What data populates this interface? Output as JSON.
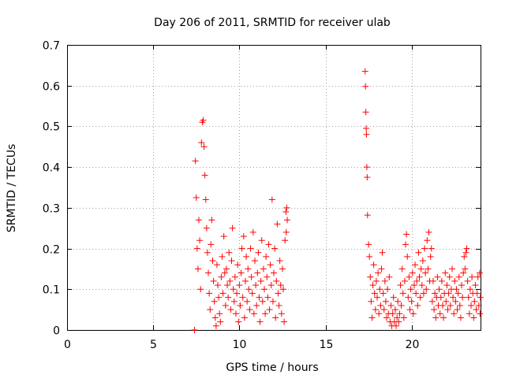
{
  "chart_data": {
    "type": "scatter",
    "title": "Day 206 of 2011, SRMTID for receiver ulab",
    "xlabel": "GPS time / hours",
    "ylabel": "SRMTID / TECUs",
    "xlim": [
      0,
      24
    ],
    "ylim": [
      0,
      0.7
    ],
    "xticks": [
      0,
      5,
      10,
      15,
      20
    ],
    "yticks": [
      0,
      0.1,
      0.2,
      0.3,
      0.4,
      0.5,
      0.6,
      0.7
    ],
    "grid": true,
    "legend": "none",
    "marker": "plus",
    "marker_color": "#ff0000",
    "series": [
      {
        "name": "SRMTID",
        "points": [
          [
            7.4,
            0.0
          ],
          [
            7.45,
            0.415
          ],
          [
            7.5,
            0.325
          ],
          [
            7.55,
            0.2
          ],
          [
            7.6,
            0.15
          ],
          [
            7.65,
            0.27
          ],
          [
            7.7,
            0.22
          ],
          [
            7.75,
            0.1
          ],
          [
            7.8,
            0.46
          ],
          [
            7.85,
            0.51
          ],
          [
            7.9,
            0.515
          ],
          [
            7.95,
            0.45
          ],
          [
            8.0,
            0.38
          ],
          [
            8.05,
            0.32
          ],
          [
            8.1,
            0.25
          ],
          [
            8.15,
            0.19
          ],
          [
            8.2,
            0.14
          ],
          [
            8.25,
            0.09
          ],
          [
            8.3,
            0.05
          ],
          [
            8.35,
            0.21
          ],
          [
            8.4,
            0.27
          ],
          [
            8.45,
            0.17
          ],
          [
            8.5,
            0.12
          ],
          [
            8.55,
            0.07
          ],
          [
            8.6,
            0.03
          ],
          [
            8.65,
            0.01
          ],
          [
            8.7,
            0.16
          ],
          [
            8.75,
            0.11
          ],
          [
            8.8,
            0.08
          ],
          [
            8.85,
            0.04
          ],
          [
            8.9,
            0.02
          ],
          [
            8.95,
            0.13
          ],
          [
            9.0,
            0.18
          ],
          [
            9.05,
            0.09
          ],
          [
            9.1,
            0.23
          ],
          [
            9.15,
            0.14
          ],
          [
            9.2,
            0.06
          ],
          [
            9.25,
            0.15
          ],
          [
            9.3,
            0.11
          ],
          [
            9.35,
            0.08
          ],
          [
            9.4,
            0.19
          ],
          [
            9.45,
            0.12
          ],
          [
            9.5,
            0.05
          ],
          [
            9.55,
            0.17
          ],
          [
            9.6,
            0.25
          ],
          [
            9.65,
            0.1
          ],
          [
            9.7,
            0.07
          ],
          [
            9.75,
            0.13
          ],
          [
            9.8,
            0.04
          ],
          [
            9.85,
            0.09
          ],
          [
            9.9,
            0.16
          ],
          [
            9.95,
            0.02
          ],
          [
            10.0,
            0.11
          ],
          [
            10.05,
            0.06
          ],
          [
            10.1,
            0.14
          ],
          [
            10.15,
            0.2
          ],
          [
            10.2,
            0.08
          ],
          [
            10.25,
            0.23
          ],
          [
            10.3,
            0.03
          ],
          [
            10.35,
            0.12
          ],
          [
            10.4,
            0.18
          ],
          [
            10.45,
            0.07
          ],
          [
            10.5,
            0.15
          ],
          [
            10.55,
            0.1
          ],
          [
            10.6,
            0.05
          ],
          [
            10.65,
            0.2
          ],
          [
            10.7,
            0.13
          ],
          [
            10.75,
            0.09
          ],
          [
            10.8,
            0.24
          ],
          [
            10.85,
            0.04
          ],
          [
            10.9,
            0.17
          ],
          [
            10.95,
            0.11
          ],
          [
            11.0,
            0.06
          ],
          [
            11.05,
            0.14
          ],
          [
            11.1,
            0.19
          ],
          [
            11.15,
            0.08
          ],
          [
            11.2,
            0.02
          ],
          [
            11.25,
            0.12
          ],
          [
            11.3,
            0.22
          ],
          [
            11.35,
            0.07
          ],
          [
            11.4,
            0.15
          ],
          [
            11.45,
            0.1
          ],
          [
            11.5,
            0.04
          ],
          [
            11.55,
            0.18
          ],
          [
            11.6,
            0.13
          ],
          [
            11.65,
            0.08
          ],
          [
            11.7,
            0.21
          ],
          [
            11.75,
            0.05
          ],
          [
            11.8,
            0.16
          ],
          [
            11.85,
            0.11
          ],
          [
            11.9,
            0.32
          ],
          [
            11.95,
            0.07
          ],
          [
            12.0,
            0.14
          ],
          [
            12.05,
            0.2
          ],
          [
            12.1,
            0.03
          ],
          [
            12.15,
            0.12
          ],
          [
            12.2,
            0.26
          ],
          [
            12.25,
            0.09
          ],
          [
            12.3,
            0.06
          ],
          [
            12.35,
            0.17
          ],
          [
            12.4,
            0.11
          ],
          [
            12.45,
            0.04
          ],
          [
            12.5,
            0.15
          ],
          [
            12.55,
            0.1
          ],
          [
            12.6,
            0.02
          ],
          [
            12.65,
            0.22
          ],
          [
            12.7,
            0.29
          ],
          [
            12.72,
            0.24
          ],
          [
            12.75,
            0.3
          ],
          [
            12.78,
            0.27
          ],
          [
            17.3,
            0.635
          ],
          [
            17.32,
            0.598
          ],
          [
            17.34,
            0.535
          ],
          [
            17.36,
            0.495
          ],
          [
            17.38,
            0.48
          ],
          [
            17.4,
            0.4
          ],
          [
            17.42,
            0.375
          ],
          [
            17.44,
            0.282
          ],
          [
            17.5,
            0.21
          ],
          [
            17.55,
            0.18
          ],
          [
            17.6,
            0.13
          ],
          [
            17.65,
            0.07
          ],
          [
            17.7,
            0.03
          ],
          [
            17.75,
            0.11
          ],
          [
            17.8,
            0.16
          ],
          [
            17.85,
            0.09
          ],
          [
            17.9,
            0.05
          ],
          [
            17.95,
            0.12
          ],
          [
            18.0,
            0.08
          ],
          [
            18.05,
            0.14
          ],
          [
            18.1,
            0.04
          ],
          [
            18.15,
            0.1
          ],
          [
            18.2,
            0.06
          ],
          [
            18.25,
            0.15
          ],
          [
            18.3,
            0.19
          ],
          [
            18.35,
            0.09
          ],
          [
            18.4,
            0.05
          ],
          [
            18.45,
            0.12
          ],
          [
            18.5,
            0.07
          ],
          [
            18.55,
            0.03
          ],
          [
            18.6,
            0.1
          ],
          [
            18.65,
            0.04
          ],
          [
            18.7,
            0.13
          ],
          [
            18.75,
            0.02
          ],
          [
            18.8,
            0.06
          ],
          [
            18.85,
            0.01
          ],
          [
            18.9,
            0.04
          ],
          [
            18.95,
            0.08
          ],
          [
            19.0,
            0.02
          ],
          [
            19.05,
            0.05
          ],
          [
            19.1,
            0.01
          ],
          [
            19.15,
            0.03
          ],
          [
            19.2,
            0.07
          ],
          [
            19.25,
            0.02
          ],
          [
            19.3,
            0.04
          ],
          [
            19.35,
            0.11
          ],
          [
            19.4,
            0.06
          ],
          [
            19.45,
            0.15
          ],
          [
            19.5,
            0.09
          ],
          [
            19.55,
            0.03
          ],
          [
            19.6,
            0.12
          ],
          [
            19.65,
            0.21
          ],
          [
            19.7,
            0.235
          ],
          [
            19.75,
            0.18
          ],
          [
            19.8,
            0.08
          ],
          [
            19.85,
            0.13
          ],
          [
            19.9,
            0.05
          ],
          [
            19.95,
            0.1
          ],
          [
            20.0,
            0.07
          ],
          [
            20.05,
            0.14
          ],
          [
            20.1,
            0.04
          ],
          [
            20.15,
            0.11
          ],
          [
            20.2,
            0.16
          ],
          [
            20.25,
            0.09
          ],
          [
            20.3,
            0.12
          ],
          [
            20.35,
            0.06
          ],
          [
            20.4,
            0.19
          ],
          [
            20.45,
            0.13
          ],
          [
            20.5,
            0.08
          ],
          [
            20.55,
            0.15
          ],
          [
            20.6,
            0.11
          ],
          [
            20.65,
            0.17
          ],
          [
            20.7,
            0.09
          ],
          [
            20.75,
            0.2
          ],
          [
            20.8,
            0.14
          ],
          [
            20.85,
            0.1
          ],
          [
            20.9,
            0.22
          ],
          [
            20.95,
            0.15
          ],
          [
            21.0,
            0.24
          ],
          [
            21.05,
            0.12
          ],
          [
            21.1,
            0.18
          ],
          [
            21.15,
            0.2
          ],
          [
            21.2,
            0.07
          ],
          [
            21.25,
            0.12
          ],
          [
            21.3,
            0.05
          ],
          [
            21.35,
            0.09
          ],
          [
            21.4,
            0.03
          ],
          [
            21.45,
            0.08
          ],
          [
            21.5,
            0.13
          ],
          [
            21.55,
            0.06
          ],
          [
            21.6,
            0.1
          ],
          [
            21.65,
            0.04
          ],
          [
            21.7,
            0.08
          ],
          [
            21.75,
            0.12
          ],
          [
            21.8,
            0.06
          ],
          [
            21.85,
            0.03
          ],
          [
            21.9,
            0.09
          ],
          [
            21.95,
            0.14
          ],
          [
            22.0,
            0.07
          ],
          [
            22.05,
            0.11
          ],
          [
            22.1,
            0.05
          ],
          [
            22.15,
            0.09
          ],
          [
            22.2,
            0.13
          ],
          [
            22.25,
            0.06
          ],
          [
            22.3,
            0.1
          ],
          [
            22.35,
            0.15
          ],
          [
            22.4,
            0.08
          ],
          [
            22.45,
            0.04
          ],
          [
            22.5,
            0.12
          ],
          [
            22.55,
            0.07
          ],
          [
            22.6,
            0.1
          ],
          [
            22.65,
            0.05
          ],
          [
            22.7,
            0.09
          ],
          [
            22.75,
            0.13
          ],
          [
            22.8,
            0.06
          ],
          [
            22.85,
            0.03
          ],
          [
            22.9,
            0.11
          ],
          [
            22.95,
            0.08
          ],
          [
            23.0,
            0.14
          ],
          [
            23.05,
            0.18
          ],
          [
            23.1,
            0.15
          ],
          [
            23.15,
            0.19
          ],
          [
            23.2,
            0.2
          ],
          [
            23.25,
            0.12
          ],
          [
            23.3,
            0.08
          ],
          [
            23.35,
            0.04
          ],
          [
            23.4,
            0.1
          ],
          [
            23.45,
            0.06
          ],
          [
            23.5,
            0.13
          ],
          [
            23.55,
            0.09
          ],
          [
            23.6,
            0.03
          ],
          [
            23.65,
            0.07
          ],
          [
            23.7,
            0.11
          ],
          [
            23.75,
            0.05
          ],
          [
            23.8,
            0.09
          ],
          [
            23.85,
            0.13
          ],
          [
            23.9,
            0.06
          ],
          [
            23.95,
            0.14
          ],
          [
            23.97,
            0.04
          ],
          [
            23.99,
            0.08
          ]
        ]
      }
    ]
  }
}
